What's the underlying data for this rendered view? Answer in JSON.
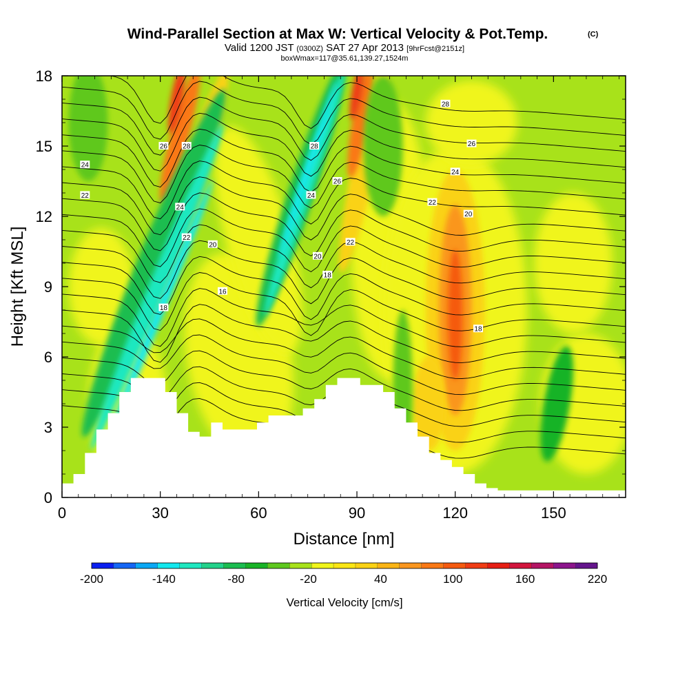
{
  "chart_data": {
    "type": "heatmap",
    "title": "Wind-Parallel Section at Max W: Vertical Velocity & Pot.Temp.",
    "title_tag": "(C)",
    "subtitle_parts": [
      "Valid 1200 JST",
      "(0300Z)",
      "SAT 27 Apr 2013",
      "[9hrFcst@2151z]"
    ],
    "subtitle2": "boxWmax=117@35.61,139.27,1524m",
    "xlabel": "Distance [nm]",
    "ylabel": "Height [Kft MSL]",
    "xlim": [
      0,
      172
    ],
    "ylim": [
      0,
      18
    ],
    "x_ticks": [
      0,
      30,
      60,
      90,
      120,
      150
    ],
    "y_ticks": [
      0,
      3,
      6,
      9,
      12,
      15,
      18
    ],
    "colorbar": {
      "title": "Vertical Velocity [cm/s]",
      "labels": [
        "-200",
        "-140",
        "-80",
        "-20",
        "40",
        "100",
        "160",
        "220"
      ],
      "colors": [
        "#0a1ff0",
        "#1466f5",
        "#0aa8f5",
        "#12e8ee",
        "#1ee8c0",
        "#22d28a",
        "#1bbd50",
        "#18b326",
        "#5ec81e",
        "#a8e21a",
        "#f0f51a",
        "#fae614",
        "#fad214",
        "#fab414",
        "#fa961e",
        "#fa7814",
        "#f55a0f",
        "#f03c14",
        "#e61e14",
        "#d2143c",
        "#b41464",
        "#8c148c",
        "#64148c"
      ]
    },
    "terrain": {
      "distance_nm": [
        0,
        3.5,
        7,
        10.5,
        14,
        17.5,
        21,
        24.5,
        28,
        31.5,
        35,
        38.5,
        42,
        45.5,
        49,
        52.5,
        56,
        59.5,
        63,
        66.5,
        70,
        73.5,
        77,
        80.5,
        84,
        87.5,
        91,
        94.5,
        98,
        101.5,
        105,
        108.5,
        112,
        115.5,
        119,
        122.5,
        126,
        129.5,
        133,
        136.5,
        140,
        143.5,
        147,
        150.5,
        154,
        157.5,
        161,
        164.5,
        168,
        172
      ],
      "height_kft": [
        0.6,
        1.0,
        1.9,
        2.9,
        3.6,
        4.5,
        5.1,
        5.1,
        5.1,
        4.5,
        3.6,
        2.8,
        2.6,
        3.2,
        2.9,
        2.9,
        2.9,
        3.2,
        3.5,
        3.5,
        3.5,
        3.8,
        4.2,
        4.8,
        5.1,
        5.1,
        4.8,
        4.8,
        4.5,
        3.8,
        3.2,
        2.6,
        1.9,
        1.6,
        1.3,
        1.0,
        0.6,
        0.4,
        0.3,
        0.3,
        0.3,
        0.3,
        0.3,
        0.3,
        0.3,
        0.3,
        0.3,
        0.3,
        0.3,
        0.3
      ]
    },
    "vertical_velocity_features": [
      {
        "kind": "downdraft",
        "x": 29,
        "y": 9,
        "w_cms": -160
      },
      {
        "kind": "updraft",
        "x": 36,
        "y": 15,
        "w_cms": 140
      },
      {
        "kind": "downdraft",
        "x": 76,
        "y": 13,
        "w_cms": -150
      },
      {
        "kind": "updraft",
        "x": 90,
        "y": 16,
        "w_cms": 145
      },
      {
        "kind": "updraft",
        "x": 120,
        "y": 8,
        "w_cms": 115
      },
      {
        "kind": "downdraft",
        "x": 152,
        "y": 4,
        "w_cms": -40
      }
    ],
    "theta_contour_labels": [
      {
        "value": "26",
        "x": 31,
        "y": 15.0
      },
      {
        "value": "28",
        "x": 38,
        "y": 15.0
      },
      {
        "value": "24",
        "x": 7,
        "y": 14.2
      },
      {
        "value": "22",
        "x": 7,
        "y": 12.9
      },
      {
        "value": "24",
        "x": 36,
        "y": 12.4
      },
      {
        "value": "22",
        "x": 38,
        "y": 11.1
      },
      {
        "value": "20",
        "x": 46,
        "y": 10.8
      },
      {
        "value": "16",
        "x": 49,
        "y": 8.8
      },
      {
        "value": "18",
        "x": 31,
        "y": 8.1
      },
      {
        "value": "28",
        "x": 77,
        "y": 15.0
      },
      {
        "value": "24",
        "x": 76,
        "y": 12.9
      },
      {
        "value": "26",
        "x": 84,
        "y": 13.5
      },
      {
        "value": "22",
        "x": 88,
        "y": 10.9
      },
      {
        "value": "20",
        "x": 78,
        "y": 10.3
      },
      {
        "value": "18",
        "x": 81,
        "y": 9.5
      },
      {
        "value": "28",
        "x": 117,
        "y": 16.8
      },
      {
        "value": "26",
        "x": 125,
        "y": 15.1
      },
      {
        "value": "24",
        "x": 120,
        "y": 13.9
      },
      {
        "value": "22",
        "x": 113,
        "y": 12.6
      },
      {
        "value": "20",
        "x": 124,
        "y": 12.1
      },
      {
        "value": "18",
        "x": 127,
        "y": 7.2
      }
    ]
  }
}
